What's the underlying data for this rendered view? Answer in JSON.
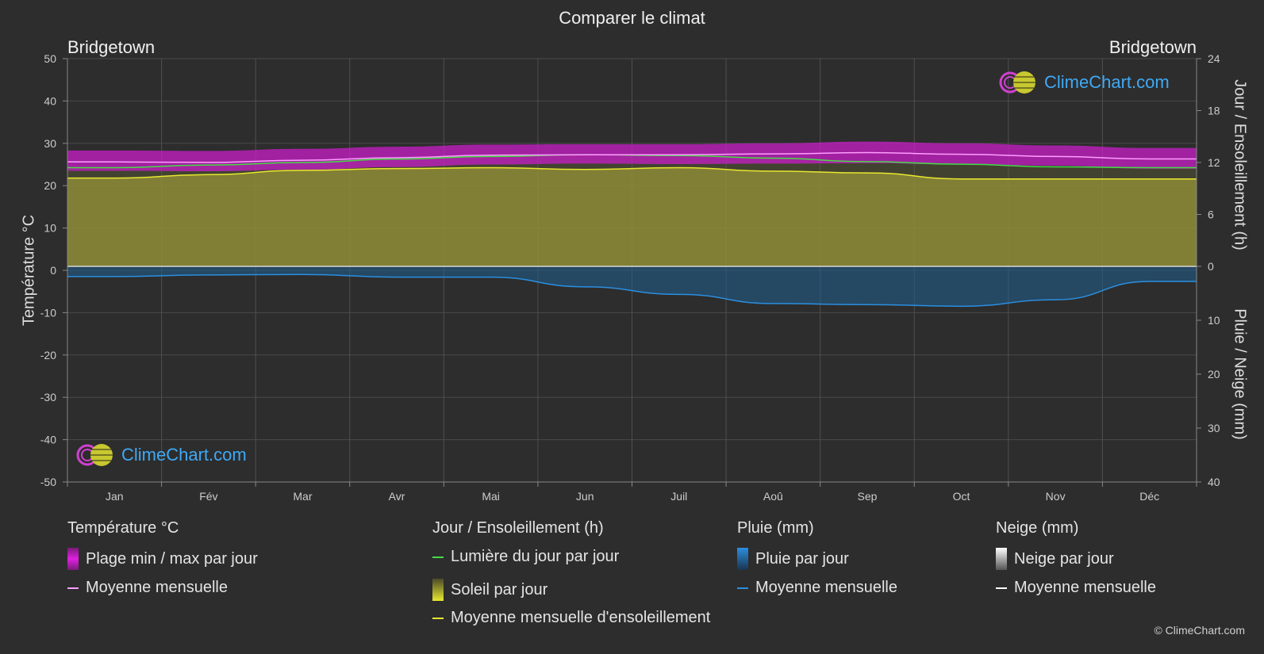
{
  "title": "Comparer le climat",
  "location_left": "Bridgetown",
  "location_right": "Bridgetown",
  "brand": "ClimeChart.com",
  "copyright": "© ClimeChart.com",
  "axes": {
    "left_title": "Température °C",
    "right_top_title": "Jour / Ensoleillement (h)",
    "right_bottom_title": "Pluie / Neige (mm)"
  },
  "legend": {
    "temperature": {
      "header": "Température °C",
      "range_label": "Plage min / max par jour",
      "mean_label": "Moyenne mensuelle"
    },
    "sun": {
      "header": "Jour / Ensoleillement (h)",
      "daylight_label": "Lumière du jour par jour",
      "sunshine_label": "Soleil par jour",
      "sun_mean_label": "Moyenne mensuelle d'ensoleillement"
    },
    "rain": {
      "header": "Pluie (mm)",
      "daily_label": "Pluie par jour",
      "mean_label": "Moyenne mensuelle"
    },
    "snow": {
      "header": "Neige (mm)",
      "daily_label": "Neige par jour",
      "mean_label": "Moyenne mensuelle"
    }
  },
  "colors": {
    "background": "#2d2d2d",
    "temp_range": "#c81ec8",
    "temp_mean": "#ff9cff",
    "daylight": "#44dd44",
    "sunshine_fill": "#a9a536",
    "sunshine_mean": "#e8e830",
    "rain_fill": "#1f5f8f",
    "rain_mean": "#2a8fe0",
    "snow_mean": "#ffffff",
    "brand": "#3fa9f5"
  },
  "chart_data": {
    "type": "area",
    "categories": [
      "Jan",
      "Fév",
      "Mar",
      "Avr",
      "Mai",
      "Jun",
      "Juil",
      "Aoû",
      "Sep",
      "Oct",
      "Nov",
      "Déc"
    ],
    "temperature_axis": {
      "range": [
        -50,
        50
      ],
      "ticks": [
        50,
        40,
        30,
        20,
        10,
        0,
        -10,
        -20,
        -30,
        -40,
        -50
      ]
    },
    "hours_axis": {
      "range": [
        0,
        24
      ],
      "ticks": [
        24,
        18,
        12,
        6,
        0
      ]
    },
    "precip_axis": {
      "range": [
        0,
        40
      ],
      "ticks": [
        0,
        10,
        20,
        30,
        40
      ]
    },
    "series": [
      {
        "name": "Moyenne mensuelle",
        "kind": "temperature_mean",
        "values": [
          25.6,
          25.5,
          26.0,
          26.6,
          27.2,
          27.3,
          27.3,
          27.5,
          27.8,
          27.4,
          26.9,
          26.3
        ]
      },
      {
        "name": "Plage min / max par jour",
        "kind": "temperature_range",
        "min": [
          23.5,
          23.4,
          23.8,
          24.4,
          25.0,
          25.2,
          25.1,
          25.2,
          25.3,
          25.0,
          24.7,
          24.0
        ],
        "max": [
          28.3,
          28.2,
          28.7,
          29.2,
          29.7,
          29.8,
          29.8,
          30.0,
          30.4,
          30.0,
          29.5,
          28.9
        ]
      },
      {
        "name": "Lumière du jour par jour",
        "kind": "daylight_hours",
        "values": [
          11.4,
          11.7,
          12.0,
          12.4,
          12.7,
          12.9,
          12.8,
          12.5,
          12.1,
          11.8,
          11.5,
          11.4
        ]
      },
      {
        "name": "Moyenne mensuelle d'ensoleillement",
        "kind": "sunshine_hours",
        "values": [
          10.2,
          10.6,
          11.1,
          11.3,
          11.4,
          11.2,
          11.4,
          11.0,
          10.8,
          10.1,
          10.1,
          10.1
        ]
      },
      {
        "name": "Moyenne mensuelle",
        "kind": "rain_mm",
        "values": [
          1.9,
          1.6,
          1.5,
          2.0,
          2.0,
          3.8,
          5.2,
          6.9,
          7.1,
          7.4,
          6.2,
          2.8
        ]
      }
    ]
  }
}
